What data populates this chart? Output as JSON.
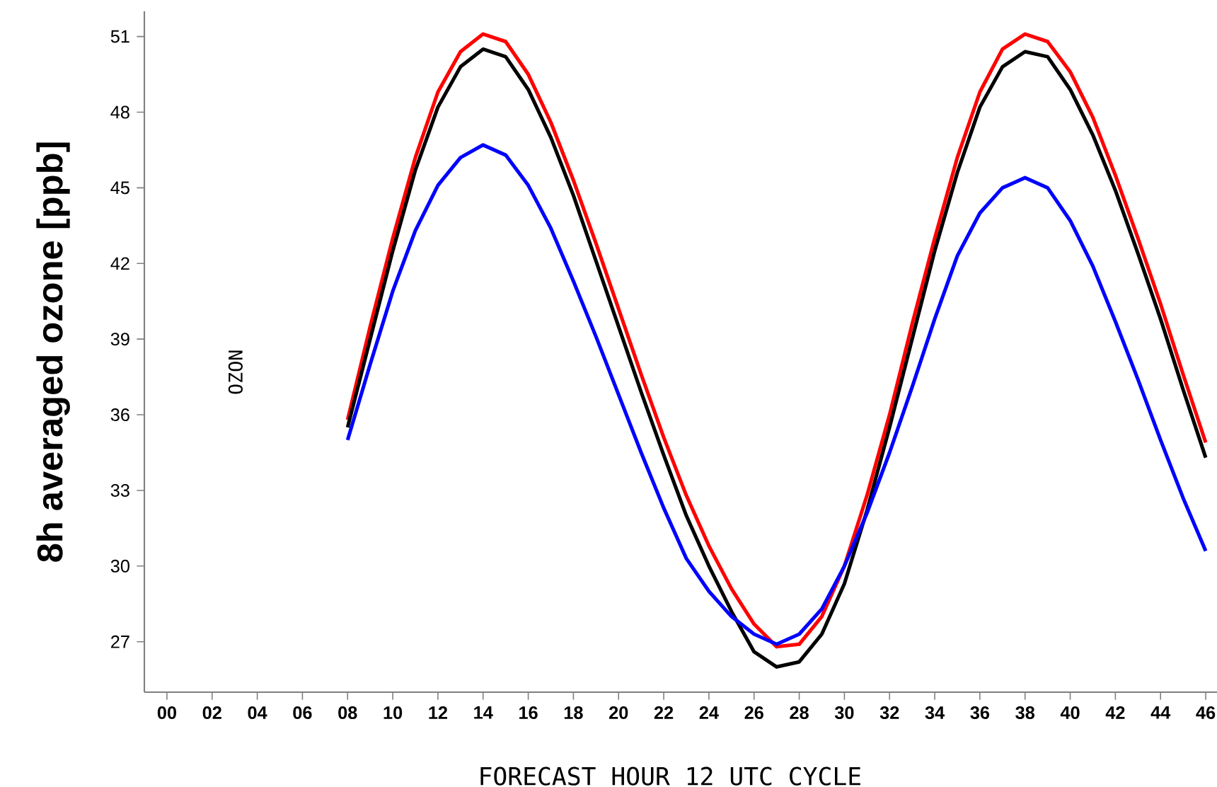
{
  "chart_data": {
    "type": "line",
    "xlabel": "FORECAST HOUR  12 UTC CYCLE",
    "ylabel": "8h averaged ozone  [ppb]",
    "annotations": [
      "OZON"
    ],
    "x": [
      8,
      9,
      10,
      11,
      12,
      13,
      14,
      15,
      16,
      17,
      18,
      19,
      20,
      21,
      22,
      23,
      24,
      25,
      26,
      27,
      28,
      29,
      30,
      31,
      32,
      33,
      34,
      35,
      36,
      37,
      38,
      39,
      40,
      41,
      42,
      43,
      44,
      45,
      46
    ],
    "series": [
      {
        "color": "#ff0000",
        "values": [
          35.8,
          39.5,
          43.0,
          46.2,
          48.8,
          50.4,
          51.1,
          50.8,
          49.5,
          47.6,
          45.3,
          42.8,
          40.2,
          37.6,
          35.1,
          32.8,
          30.8,
          29.1,
          27.7,
          26.8,
          26.9,
          28.0,
          30.0,
          32.8,
          36.0,
          39.6,
          43.0,
          46.2,
          48.8,
          50.5,
          51.1,
          50.8,
          49.6,
          47.8,
          45.5,
          43.0,
          40.4,
          37.6,
          34.9
        ]
      },
      {
        "color": "#000000",
        "values": [
          35.5,
          39.0,
          42.5,
          45.7,
          48.2,
          49.8,
          50.5,
          50.2,
          48.9,
          47.0,
          44.7,
          42.1,
          39.5,
          36.9,
          34.4,
          32.0,
          30.0,
          28.2,
          26.6,
          26.0,
          26.2,
          27.3,
          29.3,
          32.2,
          35.5,
          39.0,
          42.5,
          45.6,
          48.2,
          49.8,
          50.4,
          50.2,
          48.9,
          47.1,
          44.9,
          42.4,
          39.8,
          37.0,
          34.3
        ]
      },
      {
        "color": "#0000ff",
        "values": [
          35.0,
          38.0,
          40.9,
          43.3,
          45.1,
          46.2,
          46.7,
          46.3,
          45.1,
          43.4,
          41.3,
          39.1,
          36.8,
          34.5,
          32.3,
          30.3,
          29.0,
          28.0,
          27.3,
          26.9,
          27.3,
          28.3,
          30.0,
          32.1,
          34.5,
          37.1,
          39.8,
          42.3,
          44.0,
          45.0,
          45.4,
          45.0,
          43.7,
          41.9,
          39.7,
          37.4,
          35.0,
          32.7,
          30.6
        ]
      }
    ],
    "line_style": "solid",
    "xlim": [
      -1,
      46.5
    ],
    "ylim": [
      25,
      52
    ],
    "xticks": [
      {
        "value": 0,
        "label": "00"
      },
      {
        "value": 2,
        "label": "02"
      },
      {
        "value": 4,
        "label": "04"
      },
      {
        "value": 6,
        "label": "06"
      },
      {
        "value": 8,
        "label": "08"
      },
      10,
      12,
      14,
      16,
      18,
      20,
      22,
      24,
      26,
      28,
      30,
      32,
      34,
      36,
      38,
      40,
      42,
      44,
      46
    ],
    "yticks": [
      27,
      30,
      33,
      36,
      39,
      42,
      45,
      48,
      51
    ]
  }
}
